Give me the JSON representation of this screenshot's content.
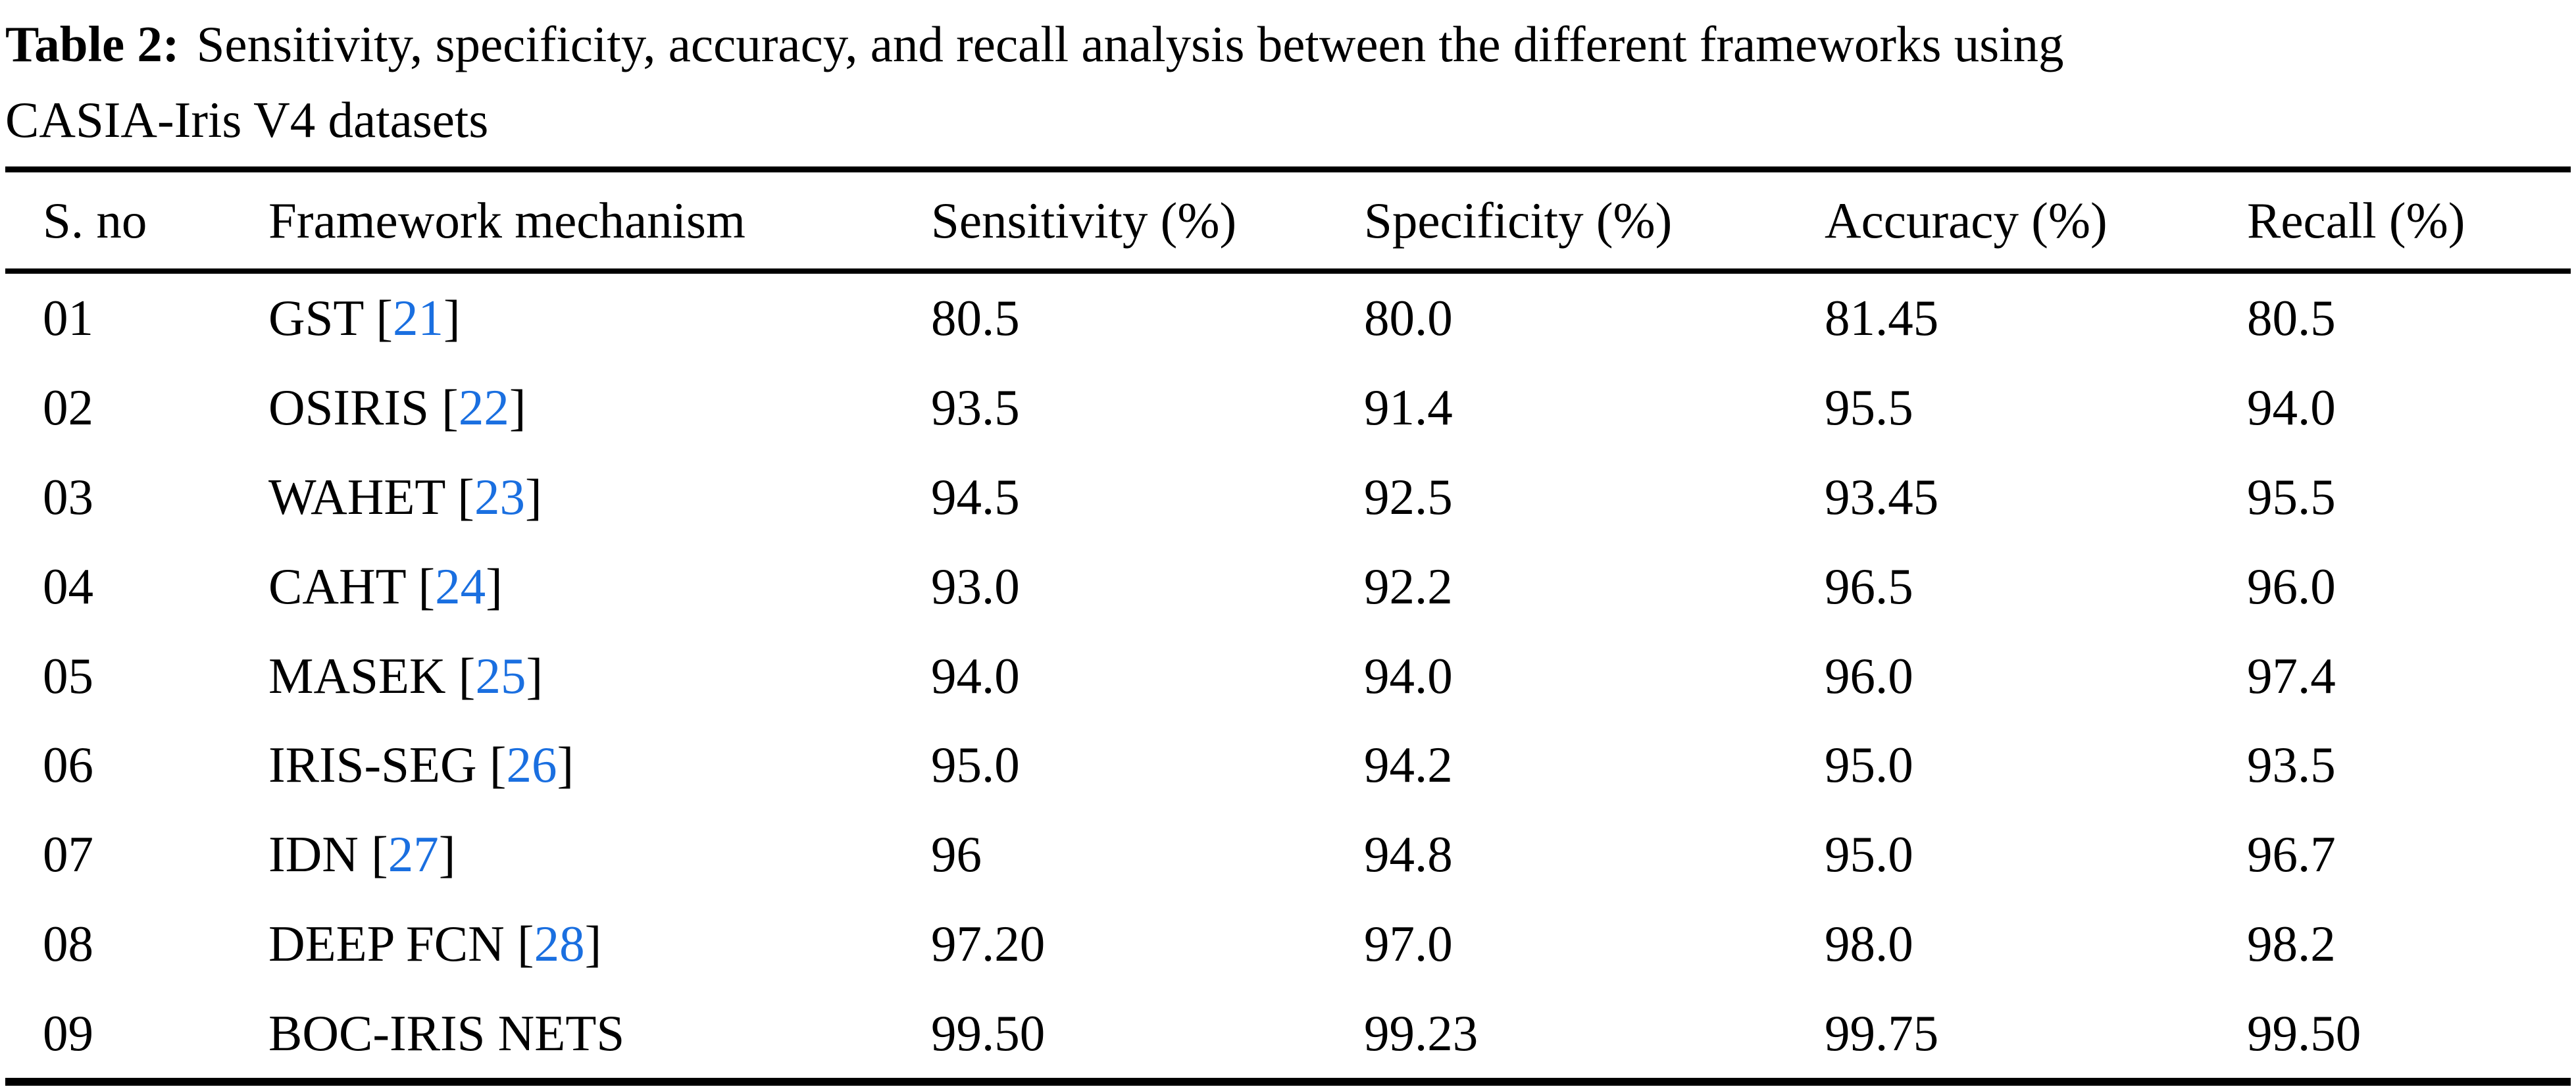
{
  "caption": {
    "label": "Table 2:",
    "line1": "Sensitivity, specificity, accuracy, and recall analysis between the different frameworks using",
    "line2": "CASIA-Iris V4 datasets"
  },
  "colors": {
    "link_blue": "#1a6fe0",
    "text": "#000000",
    "background": "#ffffff"
  },
  "table": {
    "headers": {
      "sno": "S. no",
      "framework": "Framework mechanism",
      "sensitivity": "Sensitivity (%)",
      "specificity": "Specificity (%)",
      "accuracy": "Accuracy (%)",
      "recall": "Recall (%)"
    },
    "rows": [
      {
        "sno": "01",
        "name": "GST",
        "cite_open": " [",
        "cite": "21",
        "cite_close": "]",
        "sensitivity": "80.5",
        "specificity": "80.0",
        "accuracy": "81.45",
        "recall": "80.5"
      },
      {
        "sno": "02",
        "name": "OSIRIS",
        "cite_open": " [",
        "cite": "22",
        "cite_close": "]",
        "sensitivity": "93.5",
        "specificity": "91.4",
        "accuracy": "95.5",
        "recall": "94.0"
      },
      {
        "sno": "03",
        "name": "WAHET",
        "cite_open": " [",
        "cite": "23",
        "cite_close": "]",
        "sensitivity": "94.5",
        "specificity": "92.5",
        "accuracy": "93.45",
        "recall": "95.5"
      },
      {
        "sno": "04",
        "name": "CAHT",
        "cite_open": " [",
        "cite": "24",
        "cite_close": "]",
        "sensitivity": "93.0",
        "specificity": "92.2",
        "accuracy": "96.5",
        "recall": "96.0"
      },
      {
        "sno": "05",
        "name": "MASEK",
        "cite_open": " [",
        "cite": "25",
        "cite_close": "]",
        "sensitivity": "94.0",
        "specificity": "94.0",
        "accuracy": "96.0",
        "recall": "97.4"
      },
      {
        "sno": "06",
        "name": "IRIS-SEG",
        "cite_open": " [",
        "cite": "26",
        "cite_close": "]",
        "sensitivity": "95.0",
        "specificity": "94.2",
        "accuracy": "95.0",
        "recall": "93.5"
      },
      {
        "sno": "07",
        "name": "IDN",
        "cite_open": " [",
        "cite": "27",
        "cite_close": "]",
        "sensitivity": "96",
        "specificity": "94.8",
        "accuracy": "95.0",
        "recall": "96.7"
      },
      {
        "sno": "08",
        "name": "DEEP FCN",
        "cite_open": " [",
        "cite": "28",
        "cite_close": "]",
        "sensitivity": "97.20",
        "specificity": "97.0",
        "accuracy": "98.0",
        "recall": "98.2"
      },
      {
        "sno": "09",
        "name": "BOC-IRIS NETS",
        "cite_open": "",
        "cite": "",
        "cite_close": "",
        "sensitivity": "99.50",
        "specificity": "99.23",
        "accuracy": "99.75",
        "recall": "99.50"
      }
    ]
  }
}
